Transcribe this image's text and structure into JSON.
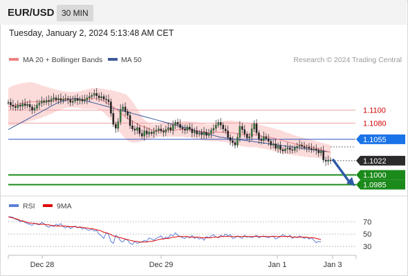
{
  "header": {
    "symbol": "EUR/USD",
    "timeframe": "30 MIN",
    "datetime": "Tuesday, January 2, 2024 5:13:48 AM CET"
  },
  "legend": {
    "bollinger_label": "MA 20 + Bollinger Bands",
    "ma50_label": "MA 50",
    "copyright": "Research © 2024 Trading Central",
    "bollinger_color": "#f08080",
    "ma50_color": "#3b5998",
    "rsi_label": "RSI",
    "rsi_color": "#5b7fd6",
    "rsi_ma_label": "9MA",
    "rsi_ma_color": "#e00000"
  },
  "chart_data": {
    "type": "candlestick",
    "xlabels": [
      "Dec 28",
      "Dec 29",
      "Jan 1",
      "Jan 3"
    ],
    "price_levels": [
      {
        "value": 1.11,
        "label": "1.1100",
        "kind": "resistance"
      },
      {
        "value": 1.108,
        "label": "1.1080",
        "kind": "resistance"
      },
      {
        "value": 1.1055,
        "label": "1.1055",
        "kind": "pivot"
      },
      {
        "value": 1.1022,
        "label": "1.1022",
        "kind": "last"
      },
      {
        "value": 1.1,
        "label": "1.1000",
        "kind": "target"
      },
      {
        "value": 1.0985,
        "label": "1.0985",
        "kind": "target"
      }
    ],
    "price_range": [
      1.0975,
      1.1155
    ],
    "close": [
      1.1112,
      1.1108,
      1.1106,
      1.1104,
      1.1108,
      1.1106,
      1.111,
      1.1107,
      1.1109,
      1.1105,
      1.11,
      1.1103,
      1.1108,
      1.1111,
      1.1114,
      1.1112,
      1.1115,
      1.1113,
      1.1117,
      1.1119,
      1.1116,
      1.1118,
      1.1115,
      1.1117,
      1.1118,
      1.1116,
      1.1112,
      1.1114,
      1.1118,
      1.1115,
      1.1117,
      1.1114,
      1.1116,
      1.1119,
      1.1121,
      1.1123,
      1.1126,
      1.1122,
      1.1119,
      1.1121,
      1.1117,
      1.1116,
      1.1113,
      1.1095,
      1.1078,
      1.1072,
      1.1082,
      1.1101,
      1.1105,
      1.1098,
      1.1092,
      1.1076,
      1.1071,
      1.1069,
      1.1073,
      1.1064,
      1.106,
      1.1068,
      1.1063,
      1.1066,
      1.1064,
      1.1067,
      1.1069,
      1.1071,
      1.1068,
      1.1066,
      1.107,
      1.1073,
      1.1069,
      1.1077,
      1.1081,
      1.1078,
      1.1073,
      1.1071,
      1.1069,
      1.1074,
      1.1071,
      1.1065,
      1.1068,
      1.1063,
      1.1065,
      1.1062,
      1.1066,
      1.1061,
      1.1064,
      1.1069,
      1.1072,
      1.1077,
      1.1081,
      1.1077,
      1.1071,
      1.1068,
      1.1058,
      1.1053,
      1.105,
      1.1046,
      1.1058,
      1.1075,
      1.107,
      1.1063,
      1.1057,
      1.1059,
      1.1071,
      1.1079,
      1.1065,
      1.1055,
      1.1053,
      1.1059,
      1.1056,
      1.1052,
      1.1046,
      1.1048,
      1.1041,
      1.1045,
      1.1039,
      1.1037,
      1.104,
      1.1042,
      1.1039,
      1.1038,
      1.1042,
      1.1044,
      1.1046,
      1.1044,
      1.1042,
      1.1043,
      1.1041,
      1.1039,
      1.104,
      1.1038,
      1.1034,
      1.1037,
      1.1023,
      1.1021,
      1.1023,
      1.1022
    ],
    "bollinger": {
      "mid": [
        1.1105,
        1.1106,
        1.1107,
        1.1108,
        1.1109,
        1.111,
        1.1111,
        1.1112,
        1.1112,
        1.1113,
        1.1113,
        1.1113,
        1.1113,
        1.1113,
        1.1114,
        1.1114,
        1.1114,
        1.1115,
        1.1115,
        1.1115,
        1.1115,
        1.1116,
        1.1116,
        1.1116,
        1.1116,
        1.1116,
        1.1116,
        1.1116,
        1.1116,
        1.1116,
        1.1116,
        1.1116,
        1.1117,
        1.1117,
        1.1118,
        1.1118,
        1.1118,
        1.1118,
        1.1117,
        1.1116,
        1.1114,
        1.1112,
        1.111,
        1.1108,
        1.1105,
        1.1102,
        1.1099,
        1.1096,
        1.1093,
        1.109,
        1.1087,
        1.1085,
        1.1083,
        1.1081,
        1.1079,
        1.1077,
        1.1075,
        1.1074,
        1.1073,
        1.1071,
        1.107,
        1.1069,
        1.1068,
        1.1068,
        1.1068,
        1.1068,
        1.1068,
        1.1069,
        1.1069,
        1.1069,
        1.1069,
        1.107,
        1.107,
        1.107,
        1.107,
        1.107,
        1.107,
        1.1069,
        1.1068,
        1.1068,
        1.1068,
        1.1067,
        1.1067,
        1.1066,
        1.1065,
        1.1065,
        1.1066,
        1.1066,
        1.1066,
        1.1066,
        1.1066,
        1.1066,
        1.1066,
        1.1065,
        1.1065,
        1.1064,
        1.1064,
        1.1063,
        1.1062,
        1.1062,
        1.1062,
        1.1062,
        1.1062,
        1.1062,
        1.1062,
        1.1061,
        1.106,
        1.1059,
        1.1059,
        1.1058,
        1.1058,
        1.1057,
        1.1056,
        1.1055,
        1.1054,
        1.1053,
        1.1052,
        1.1051,
        1.105,
        1.1049,
        1.1048,
        1.1047,
        1.1047,
        1.1046,
        1.1045,
        1.1045,
        1.1044,
        1.1043,
        1.1042,
        1.1041,
        1.104,
        1.1039,
        1.1038,
        1.1037,
        1.1036,
        1.1035
      ],
      "upper": [
        1.1134,
        1.1136,
        1.1138,
        1.1139,
        1.114,
        1.1141,
        1.1142,
        1.1142,
        1.1143,
        1.1143,
        1.1143,
        1.1142,
        1.1141,
        1.114,
        1.1138,
        1.1137,
        1.1136,
        1.1135,
        1.1134,
        1.1133,
        1.1132,
        1.1131,
        1.113,
        1.1129,
        1.1129,
        1.1128,
        1.1128,
        1.1128,
        1.1128,
        1.1128,
        1.1129,
        1.113,
        1.1131,
        1.1132,
        1.1133,
        1.1134,
        1.1134,
        1.1134,
        1.1134,
        1.1133,
        1.1133,
        1.1132,
        1.1131,
        1.1131,
        1.113,
        1.1129,
        1.1128,
        1.1127,
        1.1126,
        1.1125,
        1.1122,
        1.1118,
        1.1113,
        1.1108,
        1.1102,
        1.1096,
        1.109,
        1.1085,
        1.1082,
        1.108,
        1.1079,
        1.1078,
        1.1078,
        1.1078,
        1.1079,
        1.1079,
        1.108,
        1.108,
        1.1081,
        1.1081,
        1.1082,
        1.1082,
        1.1083,
        1.1083,
        1.1083,
        1.1083,
        1.1083,
        1.1082,
        1.1082,
        1.1081,
        1.1081,
        1.108,
        1.1079,
        1.1078,
        1.1078,
        1.1078,
        1.1079,
        1.108,
        1.1081,
        1.1082,
        1.1083,
        1.1084,
        1.1084,
        1.1084,
        1.1084,
        1.1083,
        1.1083,
        1.1082,
        1.1082,
        1.1081,
        1.1081,
        1.108,
        1.108,
        1.1079,
        1.1079,
        1.1078,
        1.1077,
        1.1076,
        1.1075,
        1.1074,
        1.1073,
        1.1072,
        1.1071,
        1.107,
        1.1069,
        1.1068,
        1.1066,
        1.1065,
        1.1064,
        1.1062,
        1.1061,
        1.106,
        1.1059,
        1.1058,
        1.1057,
        1.1056,
        1.1055,
        1.1054,
        1.1053,
        1.1052,
        1.1051,
        1.105,
        1.1049,
        1.1048,
        1.1047,
        1.1046
      ],
      "lower": [
        1.1076,
        1.1076,
        1.1076,
        1.1077,
        1.1078,
        1.1079,
        1.108,
        1.1081,
        1.1082,
        1.1083,
        1.1084,
        1.1085,
        1.1086,
        1.1087,
        1.1088,
        1.109,
        1.1091,
        1.1093,
        1.1094,
        1.1096,
        1.1098,
        1.1099,
        1.1101,
        1.1102,
        1.1103,
        1.1104,
        1.1104,
        1.1104,
        1.1104,
        1.1104,
        1.1103,
        1.1102,
        1.1102,
        1.1102,
        1.1102,
        1.1102,
        1.1102,
        1.1102,
        1.11,
        1.1099,
        1.1096,
        1.1092,
        1.1089,
        1.1085,
        1.108,
        1.1075,
        1.107,
        1.1065,
        1.106,
        1.1056,
        1.1053,
        1.1051,
        1.105,
        1.105,
        1.105,
        1.1051,
        1.1052,
        1.1053,
        1.1054,
        1.1055,
        1.1056,
        1.1057,
        1.1058,
        1.1059,
        1.1059,
        1.1059,
        1.1059,
        1.1059,
        1.1059,
        1.1059,
        1.1059,
        1.1059,
        1.1059,
        1.1059,
        1.1058,
        1.1058,
        1.1058,
        1.1057,
        1.1056,
        1.1055,
        1.1055,
        1.1054,
        1.1053,
        1.1053,
        1.1053,
        1.1052,
        1.1052,
        1.1052,
        1.1052,
        1.1051,
        1.1051,
        1.1051,
        1.105,
        1.1049,
        1.1048,
        1.1047,
        1.1046,
        1.1045,
        1.1044,
        1.1044,
        1.1043,
        1.1043,
        1.1043,
        1.1043,
        1.1043,
        1.1042,
        1.1041,
        1.1041,
        1.104,
        1.1039,
        1.1038,
        1.1037,
        1.1036,
        1.1035,
        1.1034,
        1.1033,
        1.1033,
        1.1032,
        1.1031,
        1.1031,
        1.103,
        1.103,
        1.1029,
        1.1029,
        1.1028,
        1.1028,
        1.1027,
        1.1027,
        1.1027,
        1.1026,
        1.1026,
        1.1025,
        1.1025,
        1.1025,
        1.1024,
        1.1024
      ]
    },
    "ma50": [
      1.107,
      1.1072,
      1.1074,
      1.1076,
      1.1078,
      1.108,
      1.1082,
      1.1084,
      1.1086,
      1.1088,
      1.109,
      1.1092,
      1.1094,
      1.1096,
      1.1098,
      1.11,
      1.1102,
      1.1104,
      1.1106,
      1.1108,
      1.111,
      1.1112,
      1.1113,
      1.1114,
      1.1115,
      1.1116,
      1.1117,
      1.1118,
      1.1118,
      1.1118,
      1.1117,
      1.1116,
      1.1115,
      1.1114,
      1.1113,
      1.1112,
      1.1111,
      1.111,
      1.1109,
      1.1108,
      1.1107,
      1.1106,
      1.1105,
      1.1104,
      1.1103,
      1.1102,
      1.1101,
      1.11,
      1.1099,
      1.1098,
      1.1097,
      1.1096,
      1.1095,
      1.1094,
      1.1093,
      1.1092,
      1.1091,
      1.109,
      1.1089,
      1.1088,
      1.1087,
      1.1086,
      1.1085,
      1.1084,
      1.1083,
      1.1082,
      1.1081,
      1.108,
      1.1079,
      1.1078,
      1.1077,
      1.1076,
      1.1075,
      1.1074,
      1.1073,
      1.1072,
      1.1071,
      1.107,
      1.1069,
      1.1068,
      1.1067,
      1.1066,
      1.1065,
      1.1064,
      1.1063,
      1.1062,
      1.1061,
      1.106,
      1.1059,
      1.1058,
      1.1058,
      1.1057,
      1.1057,
      1.1056,
      1.1056,
      1.1055,
      1.1055,
      1.1054,
      1.1054,
      1.1053,
      1.1053,
      1.1052,
      1.1052,
      1.1051,
      1.1051,
      1.105,
      1.105,
      1.1049,
      1.1049,
      1.1048,
      1.1048,
      1.1047,
      1.1047,
      1.1046,
      1.1046,
      1.1045,
      1.1045,
      1.1044,
      1.1044,
      1.1043,
      1.1043,
      1.1042,
      1.1042,
      1.1041,
      1.1041,
      1.104,
      1.104,
      1.1039,
      1.1039,
      1.1038,
      1.1038,
      1.1037,
      1.1037,
      1.1036,
      1.1036,
      1.1035
    ],
    "rsi": {
      "levels": [
        70,
        50,
        30
      ],
      "range": [
        20,
        85
      ],
      "values": [
        78,
        78,
        77,
        74,
        73,
        70,
        72,
        69,
        67,
        66,
        64,
        68,
        66,
        65,
        69,
        67,
        63,
        61,
        64,
        62,
        66,
        64,
        67,
        62,
        60,
        63,
        59,
        61,
        63,
        60,
        62,
        58,
        60,
        57,
        56,
        58,
        55,
        56,
        50,
        47,
        43,
        52,
        49,
        38,
        35,
        48,
        45,
        39,
        37,
        42,
        40,
        35,
        33,
        38,
        35,
        36,
        37,
        40,
        38,
        44,
        42,
        40,
        43,
        45,
        47,
        42,
        45,
        44,
        49,
        47,
        52,
        48,
        46,
        44,
        43,
        46,
        44,
        48,
        43,
        45,
        42,
        44,
        40,
        46,
        44,
        47,
        49,
        45,
        44,
        48,
        46,
        50,
        47,
        49,
        43,
        44,
        47,
        45,
        43,
        48,
        45,
        46,
        44,
        46,
        48,
        44,
        46,
        47,
        45,
        44,
        46,
        47,
        42,
        44,
        46,
        49,
        47,
        45,
        48,
        43,
        46,
        44,
        47,
        45,
        43,
        45,
        42,
        44,
        40,
        36,
        38,
        37
      ],
      "ma9": [
        78,
        77,
        76,
        75,
        74,
        72,
        71,
        70,
        69,
        68,
        68,
        67,
        67,
        66,
        66,
        66,
        65,
        65,
        64,
        64,
        63,
        63,
        63,
        63,
        63,
        62,
        62,
        62,
        62,
        61,
        61,
        61,
        60,
        60,
        59,
        59,
        58,
        57,
        56,
        55,
        53,
        52,
        51,
        49,
        47,
        46,
        45,
        44,
        43,
        42,
        41,
        40,
        39,
        38,
        38,
        37,
        37,
        37,
        37,
        38,
        38,
        39,
        40,
        41,
        42,
        42,
        43,
        43,
        44,
        45,
        45,
        46,
        46,
        46,
        46,
        46,
        45,
        45,
        45,
        45,
        45,
        44,
        44,
        44,
        44,
        44,
        45,
        45,
        45,
        46,
        46,
        46,
        46,
        46,
        46,
        46,
        46,
        46,
        46,
        46,
        46,
        46,
        46,
        46,
        46,
        46,
        46,
        46,
        46,
        46,
        46,
        46,
        46,
        46,
        46,
        46,
        46,
        46,
        46,
        45,
        45,
        45,
        45,
        45,
        45,
        45,
        44,
        44,
        44,
        43,
        42,
        41
      ]
    }
  }
}
